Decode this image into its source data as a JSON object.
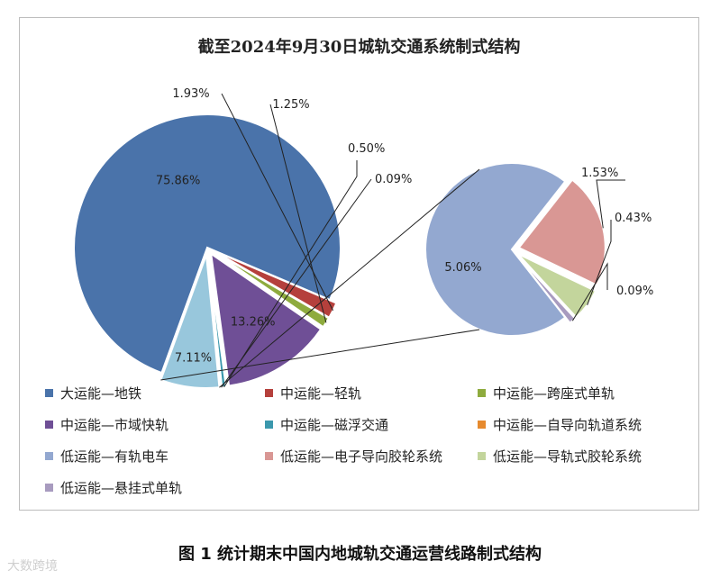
{
  "chart_data": {
    "type": "pie",
    "title": "截至2024年9月30日城轨交通系统制式结构",
    "main_slices": [
      {
        "name": "大运能—地铁",
        "value": 75.86,
        "label": "75.86%",
        "color": "#4a73aa"
      },
      {
        "name": "中运能—轻轨",
        "value": 1.93,
        "label": "1.93%",
        "color": "#b5403c"
      },
      {
        "name": "中运能—跨座式单轨",
        "value": 1.25,
        "label": "1.25%",
        "color": "#8eab3e"
      },
      {
        "name": "中运能—市域快轨",
        "value": 13.26,
        "label": "13.26%",
        "color": "#6f4f96"
      },
      {
        "name": "中运能—磁浮交通",
        "value": 0.5,
        "label": "0.50%",
        "color": "#3b98ad"
      },
      {
        "name": "中运能—自导向轨道系统",
        "value": 0.09,
        "label": "0.09%",
        "color": "#e68a2e"
      },
      {
        "name": "低运能",
        "value": 7.11,
        "label": "7.11%",
        "color": "#98c7dc"
      }
    ],
    "detail_slices": [
      {
        "name": "低运能—有轨电车",
        "value": 5.06,
        "label": "5.06%",
        "color": "#93a8d0"
      },
      {
        "name": "低运能—电子导向胶轮系统",
        "value": 1.53,
        "label": "1.53%",
        "color": "#d99794"
      },
      {
        "name": "低运能—导轨式胶轮系统",
        "value": 0.43,
        "label": "0.43%",
        "color": "#c3d59c"
      },
      {
        "name": "低运能—悬挂式单轨",
        "value": 0.09,
        "label": "0.09%",
        "color": "#a89bbf"
      }
    ],
    "legend": [
      {
        "label": "大运能—地铁",
        "color": "#4a73aa"
      },
      {
        "label": "中运能—轻轨",
        "color": "#b5403c"
      },
      {
        "label": "中运能—跨座式单轨",
        "color": "#8eab3e"
      },
      {
        "label": "中运能—市域快轨",
        "color": "#6f4f96"
      },
      {
        "label": "中运能—磁浮交通",
        "color": "#3b98ad"
      },
      {
        "label": "中运能—自导向轨道系统",
        "color": "#e68a2e"
      },
      {
        "label": "低运能—有轨电车",
        "color": "#93a8d0"
      },
      {
        "label": "低运能—电子导向胶轮系统",
        "color": "#d99794"
      },
      {
        "label": "低运能—导轨式胶轮系统",
        "color": "#c3d59c"
      },
      {
        "label": "低运能—悬挂式单轨",
        "color": "#a89bbf"
      }
    ],
    "legend_placement": "bottom"
  },
  "caption": "图 1  统计期末中国内地城轨交通运营线路制式结构",
  "watermark": "大数跨境"
}
